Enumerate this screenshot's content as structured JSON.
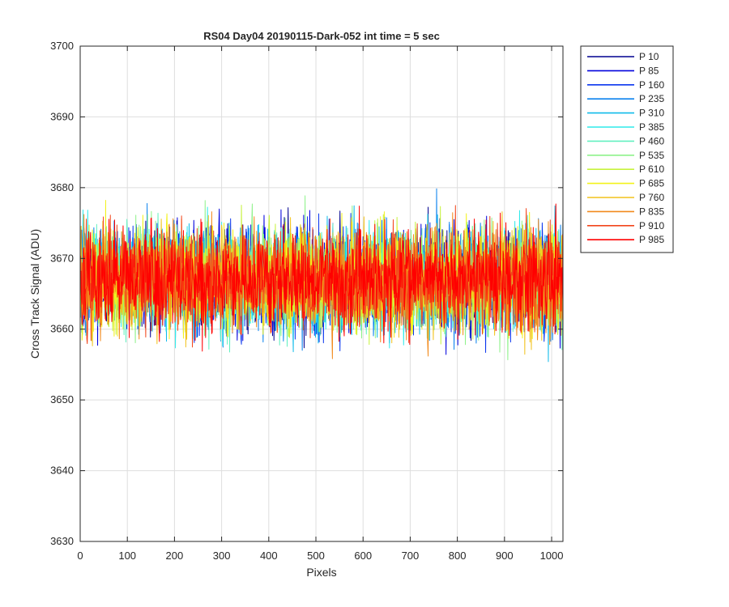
{
  "chart_data": {
    "type": "line",
    "title": "RS04 Day04 20190115-Dark-052 int time = 5 sec",
    "xlabel": "Pixels",
    "ylabel": "Cross Track Signal (ADU)",
    "xlim": [
      0,
      1024
    ],
    "ylim": [
      3630,
      3700
    ],
    "x_ticks": [
      0,
      100,
      200,
      300,
      400,
      500,
      600,
      700,
      800,
      900,
      1000
    ],
    "y_ticks": [
      3630,
      3640,
      3650,
      3660,
      3670,
      3680,
      3690,
      3700
    ],
    "grid": true,
    "legend_position": "outside-top-right",
    "x_range": [
      1,
      1024
    ],
    "series": [
      {
        "name": "P 10",
        "color": "#00008f",
        "mean": 3667,
        "spread": 9
      },
      {
        "name": "P 85",
        "color": "#0000dd",
        "mean": 3667,
        "spread": 9
      },
      {
        "name": "P 160",
        "color": "#0b36ee",
        "mean": 3667,
        "spread": 9
      },
      {
        "name": "P 235",
        "color": "#0a82ee",
        "mean": 3667,
        "spread": 9
      },
      {
        "name": "P 310",
        "color": "#0fbbea",
        "mean": 3667,
        "spread": 9
      },
      {
        "name": "P 385",
        "color": "#2eeaea",
        "mean": 3667,
        "spread": 9
      },
      {
        "name": "P 460",
        "color": "#62f0c0",
        "mean": 3667,
        "spread": 9
      },
      {
        "name": "P 535",
        "color": "#8ef28a",
        "mean": 3667,
        "spread": 9
      },
      {
        "name": "P 610",
        "color": "#c6f23c",
        "mean": 3667,
        "spread": 9
      },
      {
        "name": "P 685",
        "color": "#f2f21a",
        "mean": 3667,
        "spread": 9
      },
      {
        "name": "P 760",
        "color": "#f2c21c",
        "mean": 3667,
        "spread": 9
      },
      {
        "name": "P 835",
        "color": "#f28a1c",
        "mean": 3667,
        "spread": 9
      },
      {
        "name": "P 910",
        "color": "#f2461c",
        "mean": 3667,
        "spread": 9
      },
      {
        "name": "P 985",
        "color": "#ff0000",
        "mean": 3667,
        "spread": 9
      }
    ]
  }
}
